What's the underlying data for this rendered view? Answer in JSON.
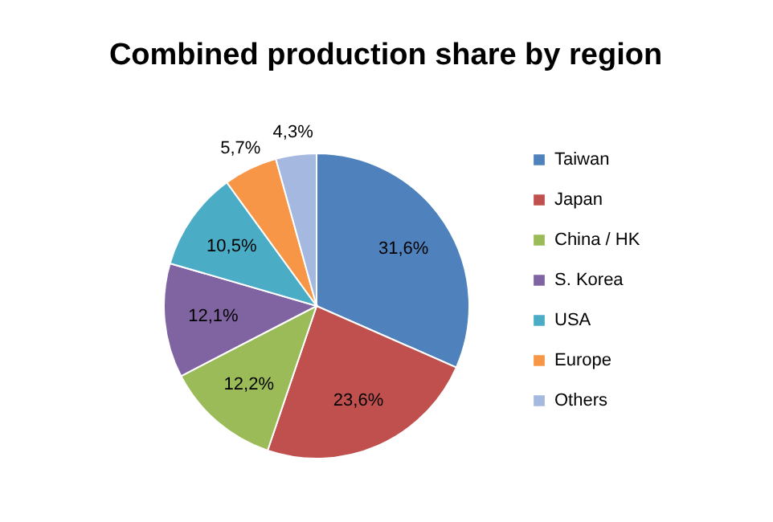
{
  "chart_data": {
    "type": "pie",
    "title": "Combined production share by region",
    "categories": [
      "Taiwan",
      "Japan",
      "China / HK",
      "S. Korea",
      "USA",
      "Europe",
      "Others"
    ],
    "values": [
      31.6,
      23.6,
      12.2,
      12.1,
      10.5,
      5.7,
      4.3
    ],
    "value_labels": [
      "31,6%",
      "23,6%",
      "12,2%",
      "12,1%",
      "10,5%",
      "5,7%",
      "4,3%"
    ],
    "colors": [
      "#4f81bd",
      "#c0504d",
      "#9bbb59",
      "#8064a2",
      "#4bacc6",
      "#f79646",
      "#a5b8e0"
    ],
    "legend": "right"
  }
}
